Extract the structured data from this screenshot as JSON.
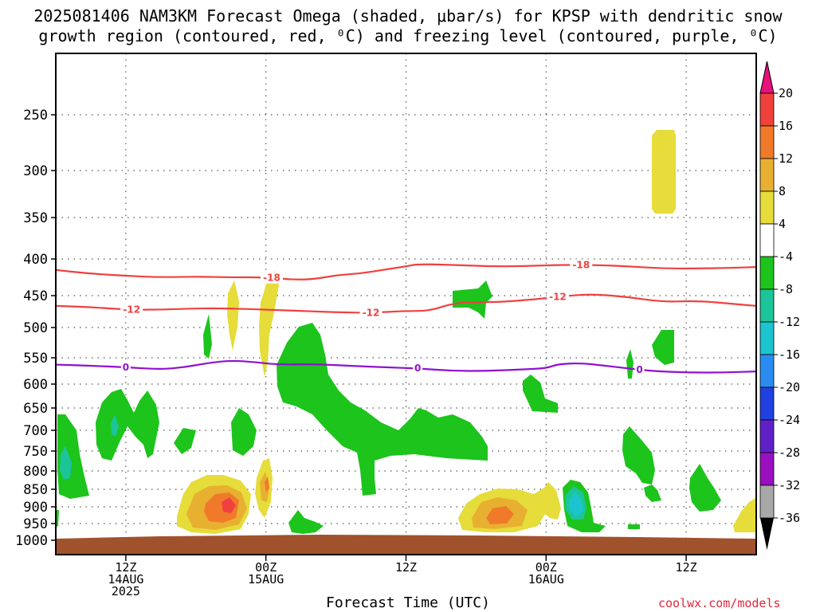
{
  "title": {
    "line1": "2025081406 NAM3KM Forecast Omega (shaded, μbar/s) for KPSP with dendritic snow",
    "line2": "growth region (contoured, red, ⁰C) and freezing level (contoured, purple, ⁰C)"
  },
  "xlabel": "Forecast Time (UTC)",
  "credit": "coolwx.com/models",
  "chart_data": {
    "type": "heatmap",
    "y_axis": {
      "label": "",
      "scale": "pressure-inverted",
      "ticks": [
        250,
        300,
        350,
        400,
        450,
        500,
        550,
        600,
        650,
        700,
        750,
        800,
        850,
        900,
        950,
        1000
      ],
      "range": [
        1000,
        200
      ]
    },
    "x_axis": {
      "label": "Forecast Time (UTC)",
      "range_hours": [
        0,
        60
      ],
      "ticks": [
        {
          "hour": 6,
          "lines": [
            "12Z",
            "14AUG",
            "2025"
          ]
        },
        {
          "hour": 18,
          "lines": [
            "00Z",
            "15AUG"
          ]
        },
        {
          "hour": 30,
          "lines": [
            "12Z"
          ]
        },
        {
          "hour": 42,
          "lines": [
            "00Z",
            "16AUG"
          ]
        },
        {
          "hour": 54,
          "lines": [
            "12Z"
          ]
        }
      ]
    },
    "grid": "dotted",
    "colorbar": {
      "levels": [
        {
          "label": "20",
          "color": "#e8326e"
        },
        {
          "label": "16",
          "color": "#f0403a"
        },
        {
          "label": "12",
          "color": "#f07a2a"
        },
        {
          "label": "8",
          "color": "#e8b030"
        },
        {
          "label": "4",
          "color": "#e6dc3a"
        },
        {
          "label": "-4",
          "color": "#ffffff"
        },
        {
          "label": "-8",
          "color": "#1cc41c"
        },
        {
          "label": "-12",
          "color": "#1cc49a"
        },
        {
          "label": "-16",
          "color": "#1cc4d0"
        },
        {
          "label": "-20",
          "color": "#2a8cf0"
        },
        {
          "label": "-24",
          "color": "#2040e0"
        },
        {
          "label": "-28",
          "color": "#6020c8"
        },
        {
          "label": "-32",
          "color": "#9a10c0"
        },
        {
          "label": "-36",
          "color": "#a8a8a8"
        }
      ],
      "bottom_cap_color": "#000000",
      "top_cap_color": "#e8107a"
    },
    "colors": {
      "dendritic": "#f04040",
      "freezing": "#9010d0",
      "ground": "#a0522d",
      "green": "#1cc41c",
      "teal": "#1cc49a",
      "cyan": "#1cc4d0",
      "yellow": "#e6dc3a",
      "gold": "#e8b030",
      "orange": "#f07a2a"
    },
    "contours": [
      {
        "name": "-18",
        "color": "#f04040",
        "points": [
          [
            0,
            415
          ],
          [
            3,
            420
          ],
          [
            6,
            423
          ],
          [
            9,
            425
          ],
          [
            12,
            424
          ],
          [
            15,
            425
          ],
          [
            18,
            425
          ],
          [
            20,
            428
          ],
          [
            22,
            428
          ],
          [
            24,
            422
          ],
          [
            26,
            420
          ],
          [
            28,
            415
          ],
          [
            30,
            410
          ],
          [
            31,
            407
          ],
          [
            34,
            408
          ],
          [
            37,
            410
          ],
          [
            40,
            410
          ],
          [
            43,
            408
          ],
          [
            46,
            408
          ],
          [
            49,
            410
          ],
          [
            52,
            413
          ],
          [
            55,
            413
          ],
          [
            58,
            412
          ],
          [
            60,
            411
          ]
        ],
        "labels": [
          {
            "hour": 18.5,
            "text": "-18"
          },
          {
            "hour": 45,
            "text": "-18"
          }
        ]
      },
      {
        "name": "-12",
        "color": "#f04040",
        "points": [
          [
            0,
            466
          ],
          [
            3,
            468
          ],
          [
            6,
            472
          ],
          [
            9,
            472
          ],
          [
            12,
            470
          ],
          [
            15,
            470
          ],
          [
            18,
            472
          ],
          [
            21,
            474
          ],
          [
            24,
            476
          ],
          [
            27,
            477
          ],
          [
            30,
            474
          ],
          [
            32,
            474
          ],
          [
            34,
            462
          ],
          [
            36,
            460
          ],
          [
            38,
            460
          ],
          [
            41,
            456
          ],
          [
            44,
            450
          ],
          [
            46,
            448
          ],
          [
            49,
            452
          ],
          [
            52,
            460
          ],
          [
            55,
            458
          ],
          [
            58,
            463
          ],
          [
            60,
            466
          ]
        ],
        "labels": [
          {
            "hour": 6.5,
            "text": "-12"
          },
          {
            "hour": 27,
            "text": "-12"
          },
          {
            "hour": 43,
            "text": "-12"
          }
        ]
      },
      {
        "name": "0",
        "color": "#9010d0",
        "points": [
          [
            0,
            563
          ],
          [
            3,
            565
          ],
          [
            6,
            568
          ],
          [
            9,
            572
          ],
          [
            11,
            568
          ],
          [
            13,
            560
          ],
          [
            15,
            555
          ],
          [
            17,
            558
          ],
          [
            19,
            563
          ],
          [
            22,
            562
          ],
          [
            25,
            565
          ],
          [
            28,
            568
          ],
          [
            31,
            570
          ],
          [
            34,
            575
          ],
          [
            37,
            575
          ],
          [
            40,
            572
          ],
          [
            42,
            570
          ],
          [
            43,
            562
          ],
          [
            45,
            560
          ],
          [
            47,
            565
          ],
          [
            49,
            570
          ],
          [
            51,
            575
          ],
          [
            54,
            578
          ],
          [
            57,
            578
          ],
          [
            60,
            576
          ]
        ],
        "labels": [
          {
            "hour": 6,
            "text": "0"
          },
          {
            "hour": 31,
            "text": "0"
          },
          {
            "hour": 50,
            "text": "0"
          }
        ]
      }
    ]
  }
}
